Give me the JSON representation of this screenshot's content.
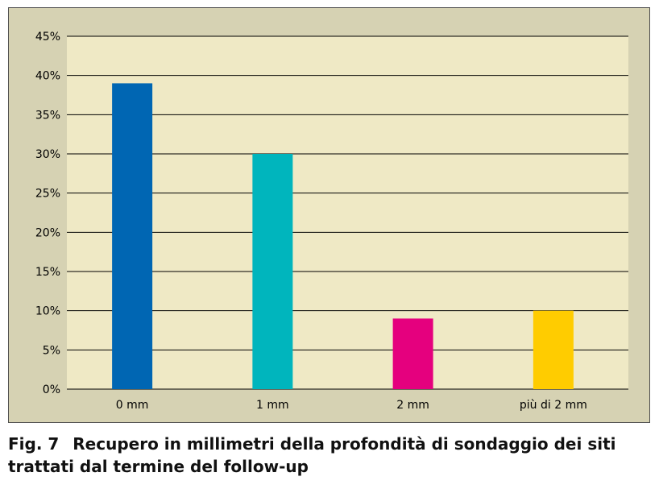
{
  "caption": {
    "label": "Fig. 7",
    "text": "Recupero in millimetri della profondità di sondaggio dei siti trattati dal termine del follow-up"
  },
  "chart_data": {
    "type": "bar",
    "title": "",
    "xlabel": "",
    "ylabel": "",
    "categories": [
      "0 mm",
      "1 mm",
      "2 mm",
      "più di 2 mm"
    ],
    "values": [
      39,
      30,
      9,
      10
    ],
    "colors": [
      "#0066b3",
      "#00b5bd",
      "#e5007e",
      "#ffcc00"
    ],
    "ylim": [
      0,
      45
    ],
    "yticks": [
      0,
      5,
      10,
      15,
      20,
      25,
      30,
      35,
      40,
      45
    ],
    "ytick_format": "%",
    "grid": true,
    "legend": "none",
    "plot_background": "#efe9c5",
    "frame_background": "#d6d2b3"
  }
}
